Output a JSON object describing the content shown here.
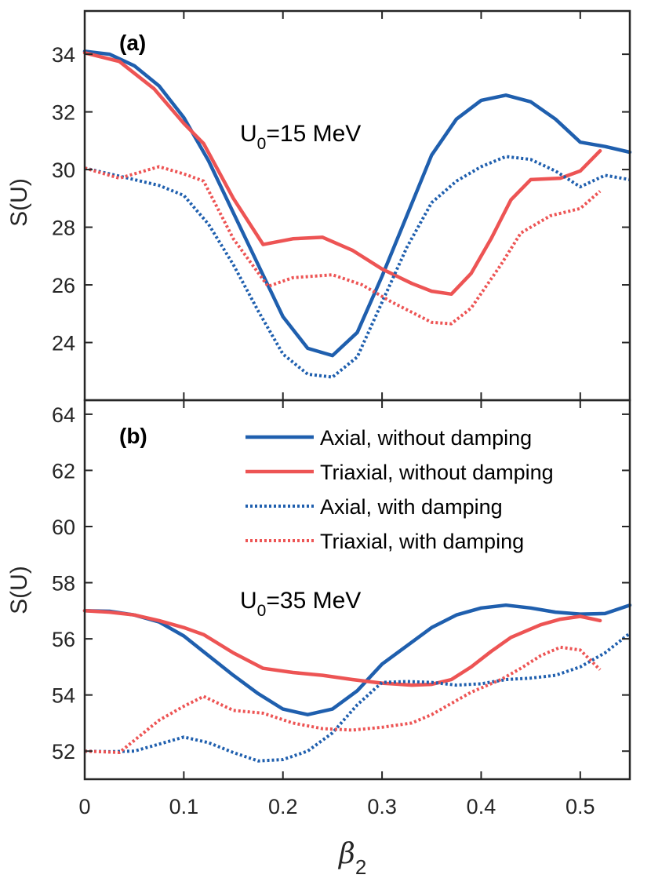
{
  "chart_data": [
    {
      "type": "line",
      "panel_label": "(a)",
      "annotation": {
        "main": "U",
        "sub": "0",
        "rest": "=15 MeV"
      },
      "xlabel": {
        "main": "β",
        "sub": "2"
      },
      "ylabel": "S(U)",
      "xlim": [
        0,
        0.55
      ],
      "ylim": [
        22,
        35.5
      ],
      "xticks": [
        0,
        0.1,
        0.2,
        0.3,
        0.4,
        0.5
      ],
      "xtick_labels": [
        "0",
        "0.1",
        "0.2",
        "0.3",
        "0.4",
        "0.5"
      ],
      "yticks": [
        24,
        26,
        28,
        30,
        32,
        34
      ],
      "ytick_labels": [
        "24",
        "26",
        "28",
        "30",
        "32",
        "34"
      ],
      "show_xtick_labels": false,
      "series": [
        {
          "name": "Axial, without damping",
          "style": "solid",
          "color": "#1f5fae",
          "points": [
            [
              0,
              34.1
            ],
            [
              0.025,
              34.0
            ],
            [
              0.05,
              33.6
            ],
            [
              0.075,
              32.9
            ],
            [
              0.1,
              31.8
            ],
            [
              0.125,
              30.3
            ],
            [
              0.15,
              28.5
            ],
            [
              0.175,
              26.7
            ],
            [
              0.2,
              24.9
            ],
            [
              0.225,
              23.8
            ],
            [
              0.25,
              23.55
            ],
            [
              0.275,
              24.35
            ],
            [
              0.3,
              26.3
            ],
            [
              0.325,
              28.4
            ],
            [
              0.35,
              30.5
            ],
            [
              0.375,
              31.75
            ],
            [
              0.4,
              32.4
            ],
            [
              0.425,
              32.58
            ],
            [
              0.45,
              32.35
            ],
            [
              0.475,
              31.75
            ],
            [
              0.5,
              30.95
            ],
            [
              0.525,
              30.8
            ],
            [
              0.55,
              30.6
            ]
          ]
        },
        {
          "name": "Triaxial, without damping",
          "style": "solid",
          "color": "#ed5454",
          "points": [
            [
              0,
              34.05
            ],
            [
              0.035,
              33.75
            ],
            [
              0.07,
              32.8
            ],
            [
              0.1,
              31.6
            ],
            [
              0.12,
              30.9
            ],
            [
              0.15,
              29.0
            ],
            [
              0.18,
              27.4
            ],
            [
              0.21,
              27.6
            ],
            [
              0.24,
              27.65
            ],
            [
              0.27,
              27.2
            ],
            [
              0.3,
              26.55
            ],
            [
              0.33,
              26.05
            ],
            [
              0.35,
              25.78
            ],
            [
              0.37,
              25.68
            ],
            [
              0.39,
              26.4
            ],
            [
              0.41,
              27.6
            ],
            [
              0.43,
              28.95
            ],
            [
              0.45,
              29.65
            ],
            [
              0.48,
              29.7
            ],
            [
              0.5,
              29.95
            ],
            [
              0.52,
              30.65
            ]
          ]
        },
        {
          "name": "Axial, with damping",
          "style": "dotted",
          "color": "#1f5fae",
          "points": [
            [
              0,
              30.05
            ],
            [
              0.05,
              29.65
            ],
            [
              0.075,
              29.45
            ],
            [
              0.1,
              29.1
            ],
            [
              0.125,
              28.1
            ],
            [
              0.15,
              26.7
            ],
            [
              0.175,
              25.1
            ],
            [
              0.2,
              23.6
            ],
            [
              0.225,
              22.9
            ],
            [
              0.25,
              22.8
            ],
            [
              0.275,
              23.5
            ],
            [
              0.3,
              25.4
            ],
            [
              0.325,
              27.3
            ],
            [
              0.35,
              28.85
            ],
            [
              0.375,
              29.6
            ],
            [
              0.4,
              30.1
            ],
            [
              0.425,
              30.45
            ],
            [
              0.45,
              30.35
            ],
            [
              0.475,
              29.95
            ],
            [
              0.5,
              29.4
            ],
            [
              0.525,
              29.8
            ],
            [
              0.55,
              29.65
            ]
          ]
        },
        {
          "name": "Triaxial, with damping",
          "style": "dotted",
          "color": "#ed5454",
          "points": [
            [
              0,
              30.05
            ],
            [
              0.035,
              29.7
            ],
            [
              0.075,
              30.1
            ],
            [
              0.1,
              29.85
            ],
            [
              0.12,
              29.6
            ],
            [
              0.15,
              27.6
            ],
            [
              0.185,
              25.95
            ],
            [
              0.21,
              26.25
            ],
            [
              0.25,
              26.35
            ],
            [
              0.28,
              26.0
            ],
            [
              0.31,
              25.4
            ],
            [
              0.33,
              25.05
            ],
            [
              0.35,
              24.7
            ],
            [
              0.37,
              24.65
            ],
            [
              0.39,
              25.2
            ],
            [
              0.42,
              26.7
            ],
            [
              0.44,
              27.8
            ],
            [
              0.47,
              28.4
            ],
            [
              0.5,
              28.65
            ],
            [
              0.52,
              29.25
            ]
          ]
        }
      ]
    },
    {
      "type": "line",
      "panel_label": "(b)",
      "annotation": {
        "main": "U",
        "sub": "0",
        "rest": "=35 MeV"
      },
      "xlabel": {
        "main": "β",
        "sub": "2"
      },
      "ylabel": "S(U)",
      "xlim": [
        0,
        0.55
      ],
      "ylim": [
        51,
        64.5
      ],
      "xticks": [
        0,
        0.1,
        0.2,
        0.3,
        0.4,
        0.5
      ],
      "xtick_labels": [
        "0",
        "0.1",
        "0.2",
        "0.3",
        "0.4",
        "0.5"
      ],
      "yticks": [
        52,
        54,
        56,
        58,
        60,
        62,
        64
      ],
      "ytick_labels": [
        "52",
        "54",
        "56",
        "58",
        "60",
        "62",
        "64"
      ],
      "show_xtick_labels": true,
      "legend_location": "top-right",
      "series": [
        {
          "name": "Axial, without damping",
          "style": "solid",
          "color": "#1f5fae",
          "points": [
            [
              0,
              57.0
            ],
            [
              0.025,
              56.98
            ],
            [
              0.05,
              56.85
            ],
            [
              0.075,
              56.6
            ],
            [
              0.1,
              56.1
            ],
            [
              0.125,
              55.4
            ],
            [
              0.15,
              54.7
            ],
            [
              0.175,
              54.05
            ],
            [
              0.2,
              53.5
            ],
            [
              0.225,
              53.3
            ],
            [
              0.25,
              53.5
            ],
            [
              0.275,
              54.15
            ],
            [
              0.3,
              55.1
            ],
            [
              0.325,
              55.75
            ],
            [
              0.35,
              56.4
            ],
            [
              0.375,
              56.85
            ],
            [
              0.4,
              57.1
            ],
            [
              0.425,
              57.2
            ],
            [
              0.45,
              57.1
            ],
            [
              0.475,
              56.95
            ],
            [
              0.5,
              56.88
            ],
            [
              0.525,
              56.9
            ],
            [
              0.55,
              57.2
            ]
          ]
        },
        {
          "name": "Triaxial, without damping",
          "style": "solid",
          "color": "#ed5454",
          "points": [
            [
              0,
              57.0
            ],
            [
              0.025,
              56.95
            ],
            [
              0.05,
              56.85
            ],
            [
              0.075,
              56.65
            ],
            [
              0.1,
              56.4
            ],
            [
              0.12,
              56.15
            ],
            [
              0.15,
              55.5
            ],
            [
              0.18,
              54.95
            ],
            [
              0.21,
              54.8
            ],
            [
              0.24,
              54.7
            ],
            [
              0.27,
              54.55
            ],
            [
              0.3,
              54.42
            ],
            [
              0.33,
              54.35
            ],
            [
              0.35,
              54.38
            ],
            [
              0.37,
              54.55
            ],
            [
              0.39,
              55.0
            ],
            [
              0.41,
              55.55
            ],
            [
              0.43,
              56.05
            ],
            [
              0.46,
              56.5
            ],
            [
              0.48,
              56.7
            ],
            [
              0.5,
              56.8
            ],
            [
              0.52,
              56.65
            ]
          ]
        },
        {
          "name": "Axial, with damping",
          "style": "dotted",
          "color": "#1f5fae",
          "points": [
            [
              0,
              52.0
            ],
            [
              0.025,
              51.98
            ],
            [
              0.05,
              52.0
            ],
            [
              0.075,
              52.25
            ],
            [
              0.1,
              52.5
            ],
            [
              0.125,
              52.3
            ],
            [
              0.15,
              51.95
            ],
            [
              0.175,
              51.65
            ],
            [
              0.2,
              51.7
            ],
            [
              0.225,
              52.0
            ],
            [
              0.25,
              52.65
            ],
            [
              0.275,
              53.65
            ],
            [
              0.3,
              54.45
            ],
            [
              0.325,
              54.48
            ],
            [
              0.35,
              54.45
            ],
            [
              0.375,
              54.35
            ],
            [
              0.4,
              54.4
            ],
            [
              0.425,
              54.55
            ],
            [
              0.45,
              54.6
            ],
            [
              0.475,
              54.7
            ],
            [
              0.5,
              55.0
            ],
            [
              0.525,
              55.5
            ],
            [
              0.55,
              56.2
            ]
          ]
        },
        {
          "name": "Triaxial, with damping",
          "style": "dotted",
          "color": "#ed5454",
          "points": [
            [
              0,
              52.0
            ],
            [
              0.035,
              51.95
            ],
            [
              0.075,
              53.1
            ],
            [
              0.1,
              53.6
            ],
            [
              0.12,
              53.95
            ],
            [
              0.15,
              53.45
            ],
            [
              0.18,
              53.35
            ],
            [
              0.21,
              53.0
            ],
            [
              0.24,
              52.8
            ],
            [
              0.27,
              52.75
            ],
            [
              0.3,
              52.85
            ],
            [
              0.33,
              53.0
            ],
            [
              0.35,
              53.3
            ],
            [
              0.37,
              53.7
            ],
            [
              0.39,
              54.1
            ],
            [
              0.42,
              54.55
            ],
            [
              0.44,
              54.95
            ],
            [
              0.46,
              55.4
            ],
            [
              0.48,
              55.7
            ],
            [
              0.5,
              55.6
            ],
            [
              0.52,
              54.9
            ]
          ]
        }
      ]
    }
  ]
}
